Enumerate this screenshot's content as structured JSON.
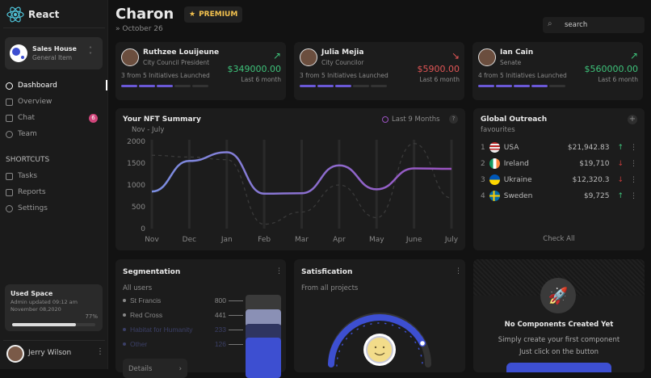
{
  "brand": {
    "name": "React"
  },
  "workspace": {
    "name": "Sales House",
    "sub": "General Item"
  },
  "nav": [
    {
      "label": "Dashboard",
      "active": true
    },
    {
      "label": "Overview"
    },
    {
      "label": "Chat",
      "badge": "6"
    },
    {
      "label": "Team"
    }
  ],
  "shortcuts_title": "SHORTCUTS",
  "shortcuts": [
    {
      "label": "Tasks"
    },
    {
      "label": "Reports"
    },
    {
      "label": "Settings"
    }
  ],
  "used_space": {
    "title": "Used Space",
    "line1": "Admin updated 09:12 am",
    "line2": "November 08,2020",
    "percent_label": "77%",
    "percent": 77
  },
  "user": {
    "name": "Jerry Wilson"
  },
  "header": {
    "title": "Charon",
    "badge": "PREMIUM",
    "date": "October 26",
    "search_placeholder": "search"
  },
  "people": [
    {
      "name": "Ruthzee Louijeune",
      "role": "City Council President",
      "amount": "$349000.00",
      "period": "Last 6 month",
      "initiatives": "3 from 5 Initiatives Launched",
      "progress": 3,
      "trend": "up"
    },
    {
      "name": "Julia Mejia",
      "role": "City Councilor",
      "amount": "$5900.00",
      "period": "Last 6 month",
      "initiatives": "3 from 5 Initiatives Launched",
      "progress": 3,
      "trend": "down"
    },
    {
      "name": "Ian Cain",
      "role": "Senate",
      "amount": "$560000.00",
      "period": "Last 6 month",
      "initiatives": "4 from 5 Initiatives Launched",
      "progress": 4,
      "trend": "up"
    }
  ],
  "nft": {
    "title": "Your NFT Summary",
    "subtitle": "Nov - July",
    "legend": "Last 9 Months",
    "help": "?"
  },
  "chart_data": {
    "type": "line",
    "x": [
      "Nov",
      "Dec",
      "Jan",
      "Feb",
      "Mar",
      "Apr",
      "May",
      "June",
      "July"
    ],
    "yticks": [
      "0",
      "500",
      "1000",
      "1500",
      "2000"
    ],
    "ylim": [
      0,
      2000
    ],
    "series": [
      {
        "values": [
          850,
          1550,
          1750,
          800,
          810,
          1450,
          900,
          1380,
          1370
        ],
        "style": "solid",
        "colors": [
          "#7b8ee0",
          "#9a52c0"
        ]
      },
      {
        "values": [
          1680,
          1640,
          1580,
          100,
          380,
          1000,
          250,
          1950,
          700
        ],
        "style": "dashed",
        "color": "#3a3a3a"
      }
    ]
  },
  "outreach": {
    "title": "Global Outreach",
    "subtitle": "favourites",
    "check_all": "Check All",
    "items": [
      {
        "rank": "1",
        "country": "USA",
        "amount": "$21,942.83",
        "trend": "up"
      },
      {
        "rank": "2",
        "country": "Ireland",
        "amount": "$19,710",
        "trend": "down"
      },
      {
        "rank": "3",
        "country": "Ukraine",
        "amount": "$12,320.3",
        "trend": "down"
      },
      {
        "rank": "4",
        "country": "Sweden",
        "amount": "$9,725",
        "trend": "up"
      }
    ]
  },
  "segmentation": {
    "title": "Segmentation",
    "subtitle": "All users",
    "details": "Details",
    "items": [
      {
        "label": "St Francis",
        "value": "800"
      },
      {
        "label": "Red Cross",
        "value": "441"
      },
      {
        "label": "Habitat for Humanity",
        "value": "233"
      },
      {
        "label": "Other",
        "value": "126"
      }
    ]
  },
  "satisfication": {
    "title": "Satisfication",
    "subtitle": "From all projects"
  },
  "empty": {
    "title": "No Components Created Yet",
    "line1": "Simply create your first component",
    "line2": "Just click on the button"
  },
  "colors": {
    "accent": "#3d4fd1",
    "up": "#3ec27a",
    "down": "#e05555",
    "premium": "#f2c14e"
  }
}
